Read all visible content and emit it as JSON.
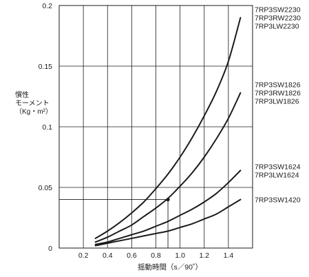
{
  "chart_data": {
    "type": "line",
    "xlabel": "揺動時間（s／90˚）",
    "ylabel": "慣性\nモーメント\n（Kg・m²）",
    "xlim": [
      0,
      1.6
    ],
    "ylim": [
      0,
      0.2
    ],
    "xticks": [
      "0.2",
      "0.4",
      "0.6",
      "0.8",
      "1.0",
      "1.2",
      "1.4"
    ],
    "xtick_values": [
      0.2,
      0.4,
      0.6,
      0.8,
      1.0,
      1.2,
      1.4
    ],
    "yticks": [
      "0",
      "0.05",
      "0.1",
      "0.15",
      "0.2"
    ],
    "ytick_values": [
      0,
      0.05,
      0.1,
      0.15,
      0.2
    ],
    "grid": true,
    "series": [
      {
        "name": "7RP3SW2230\n7RP3RW2230\n7RP3LW2230",
        "x": [
          0.3,
          0.4,
          0.5,
          0.6,
          0.7,
          0.8,
          0.9,
          1.0,
          1.1,
          1.2,
          1.3,
          1.4,
          1.5
        ],
        "y": [
          0.008,
          0.014,
          0.021,
          0.029,
          0.038,
          0.049,
          0.061,
          0.075,
          0.091,
          0.109,
          0.129,
          0.154,
          0.19
        ]
      },
      {
        "name": "7RP3SW1826\n7RP3RW1826\n7RP3LW1826",
        "x": [
          0.3,
          0.4,
          0.5,
          0.6,
          0.7,
          0.8,
          0.9,
          1.0,
          1.1,
          1.2,
          1.3,
          1.4,
          1.5
        ],
        "y": [
          0.005,
          0.009,
          0.014,
          0.019,
          0.026,
          0.033,
          0.041,
          0.051,
          0.062,
          0.075,
          0.09,
          0.107,
          0.128
        ]
      },
      {
        "name": "7RP3SW1624\n7RP3LW1624",
        "x": [
          0.3,
          0.4,
          0.5,
          0.6,
          0.7,
          0.8,
          0.9,
          1.0,
          1.1,
          1.2,
          1.3,
          1.4,
          1.5
        ],
        "y": [
          0.003,
          0.005,
          0.008,
          0.011,
          0.014,
          0.018,
          0.022,
          0.027,
          0.032,
          0.038,
          0.045,
          0.054,
          0.064
        ]
      },
      {
        "name": "7RP3SW1420",
        "x": [
          0.3,
          0.4,
          0.5,
          0.6,
          0.7,
          0.8,
          0.9,
          1.0,
          1.1,
          1.2,
          1.3,
          1.4,
          1.5
        ],
        "y": [
          0.002,
          0.004,
          0.006,
          0.008,
          0.01,
          0.012,
          0.014,
          0.017,
          0.02,
          0.024,
          0.028,
          0.034,
          0.04
        ]
      }
    ],
    "annotations": [
      {
        "type": "point",
        "x": 0.9,
        "y": 0.04,
        "drop_to_x": 0.9,
        "ref_line_y": 0.04
      }
    ],
    "colors": {
      "line": "#1a1a1a",
      "grid": "#1a1a1a",
      "background": "#ffffff"
    }
  }
}
